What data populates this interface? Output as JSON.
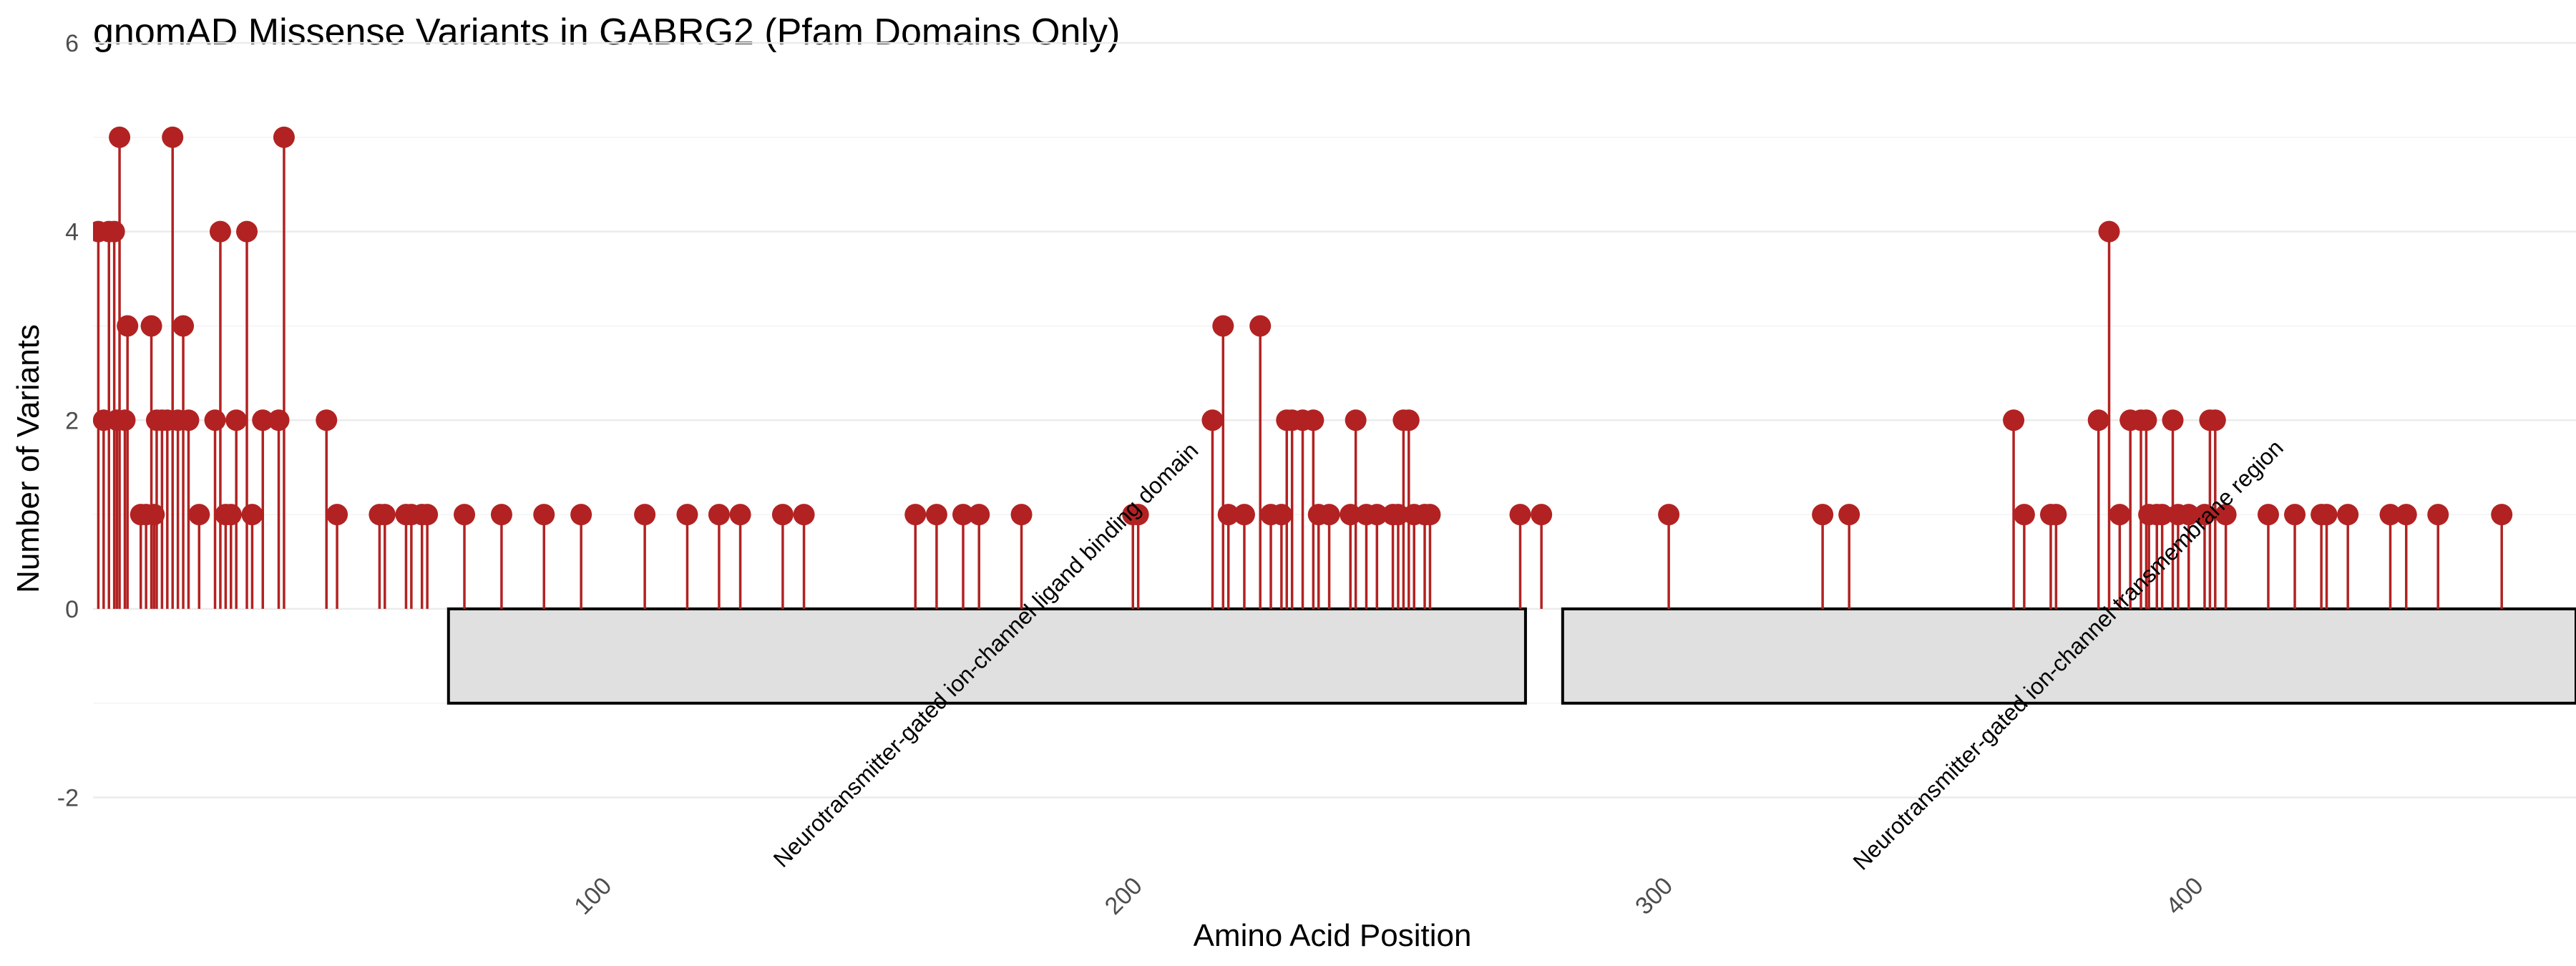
{
  "chart_data": {
    "type": "lollipop",
    "title": "gnomAD Missense Variants in GABRG2 (Pfam Domains Only)",
    "xlabel": "Amino Acid Position",
    "ylabel": "Number of Variants",
    "xlim": [
      2,
      470
    ],
    "ylim": [
      -2.8,
      6
    ],
    "x_ticks": [
      100,
      200,
      300,
      400
    ],
    "y_ticks": [
      -2,
      0,
      2,
      4,
      6
    ],
    "grid": true,
    "color": "#b22222",
    "variants": [
      {
        "x": 3,
        "y": 4
      },
      {
        "x": 4,
        "y": 2
      },
      {
        "x": 5,
        "y": 4
      },
      {
        "x": 6,
        "y": 4
      },
      {
        "x": 6.5,
        "y": 2
      },
      {
        "x": 7,
        "y": 5
      },
      {
        "x": 8,
        "y": 2
      },
      {
        "x": 8.5,
        "y": 3
      },
      {
        "x": 11,
        "y": 1
      },
      {
        "x": 12,
        "y": 1
      },
      {
        "x": 13,
        "y": 3
      },
      {
        "x": 13.5,
        "y": 1
      },
      {
        "x": 14,
        "y": 2
      },
      {
        "x": 15,
        "y": 2
      },
      {
        "x": 16,
        "y": 2
      },
      {
        "x": 17,
        "y": 5
      },
      {
        "x": 18,
        "y": 2
      },
      {
        "x": 19,
        "y": 3
      },
      {
        "x": 20,
        "y": 2
      },
      {
        "x": 22,
        "y": 1
      },
      {
        "x": 25,
        "y": 2
      },
      {
        "x": 26,
        "y": 4
      },
      {
        "x": 27,
        "y": 1
      },
      {
        "x": 28,
        "y": 1
      },
      {
        "x": 29,
        "y": 2
      },
      {
        "x": 31,
        "y": 4
      },
      {
        "x": 32,
        "y": 1
      },
      {
        "x": 34,
        "y": 2
      },
      {
        "x": 37,
        "y": 2
      },
      {
        "x": 38,
        "y": 5
      },
      {
        "x": 46,
        "y": 2
      },
      {
        "x": 48,
        "y": 1
      },
      {
        "x": 56,
        "y": 1
      },
      {
        "x": 57,
        "y": 1
      },
      {
        "x": 61,
        "y": 1
      },
      {
        "x": 62,
        "y": 1
      },
      {
        "x": 64,
        "y": 1
      },
      {
        "x": 65,
        "y": 1
      },
      {
        "x": 72,
        "y": 1
      },
      {
        "x": 79,
        "y": 1
      },
      {
        "x": 87,
        "y": 1
      },
      {
        "x": 94,
        "y": 1
      },
      {
        "x": 106,
        "y": 1
      },
      {
        "x": 114,
        "y": 1
      },
      {
        "x": 120,
        "y": 1
      },
      {
        "x": 124,
        "y": 1
      },
      {
        "x": 132,
        "y": 1
      },
      {
        "x": 136,
        "y": 1
      },
      {
        "x": 157,
        "y": 1
      },
      {
        "x": 161,
        "y": 1
      },
      {
        "x": 166,
        "y": 1
      },
      {
        "x": 169,
        "y": 1
      },
      {
        "x": 177,
        "y": 1
      },
      {
        "x": 198,
        "y": 1
      },
      {
        "x": 199,
        "y": 1
      },
      {
        "x": 213,
        "y": 2
      },
      {
        "x": 215,
        "y": 3
      },
      {
        "x": 216,
        "y": 1
      },
      {
        "x": 219,
        "y": 1
      },
      {
        "x": 222,
        "y": 3
      },
      {
        "x": 224,
        "y": 1
      },
      {
        "x": 226,
        "y": 1
      },
      {
        "x": 227,
        "y": 2
      },
      {
        "x": 228,
        "y": 2
      },
      {
        "x": 230,
        "y": 2
      },
      {
        "x": 232,
        "y": 2
      },
      {
        "x": 233,
        "y": 1
      },
      {
        "x": 235,
        "y": 1
      },
      {
        "x": 239,
        "y": 1
      },
      {
        "x": 240,
        "y": 2
      },
      {
        "x": 242,
        "y": 1
      },
      {
        "x": 244,
        "y": 1
      },
      {
        "x": 247,
        "y": 1
      },
      {
        "x": 248,
        "y": 1
      },
      {
        "x": 249,
        "y": 2
      },
      {
        "x": 250,
        "y": 2
      },
      {
        "x": 251,
        "y": 1
      },
      {
        "x": 253,
        "y": 1
      },
      {
        "x": 254,
        "y": 1
      },
      {
        "x": 271,
        "y": 1
      },
      {
        "x": 275,
        "y": 1
      },
      {
        "x": 299,
        "y": 1
      },
      {
        "x": 328,
        "y": 1
      },
      {
        "x": 333,
        "y": 1
      },
      {
        "x": 364,
        "y": 2
      },
      {
        "x": 366,
        "y": 1
      },
      {
        "x": 371,
        "y": 1
      },
      {
        "x": 372,
        "y": 1
      },
      {
        "x": 380,
        "y": 2
      },
      {
        "x": 382,
        "y": 4
      },
      {
        "x": 384,
        "y": 1
      },
      {
        "x": 386,
        "y": 2
      },
      {
        "x": 388,
        "y": 2
      },
      {
        "x": 389,
        "y": 2
      },
      {
        "x": 389.5,
        "y": 1
      },
      {
        "x": 391,
        "y": 1
      },
      {
        "x": 392,
        "y": 1
      },
      {
        "x": 394,
        "y": 2
      },
      {
        "x": 395,
        "y": 1
      },
      {
        "x": 397,
        "y": 1
      },
      {
        "x": 400,
        "y": 1
      },
      {
        "x": 401,
        "y": 2
      },
      {
        "x": 402,
        "y": 2
      },
      {
        "x": 404,
        "y": 1
      },
      {
        "x": 412,
        "y": 1
      },
      {
        "x": 417,
        "y": 1
      },
      {
        "x": 422,
        "y": 1
      },
      {
        "x": 423,
        "y": 1
      },
      {
        "x": 427,
        "y": 1
      },
      {
        "x": 435,
        "y": 1
      },
      {
        "x": 438,
        "y": 1
      },
      {
        "x": 444,
        "y": 1
      },
      {
        "x": 456,
        "y": 1
      }
    ],
    "domains": [
      {
        "start": 69,
        "end": 272,
        "label": "Neurotransmitter-gated ion-channel ligand binding domain"
      },
      {
        "start": 279,
        "end": 470,
        "label": "Neurotransmitter-gated ion-channel transmembrane region"
      }
    ]
  }
}
